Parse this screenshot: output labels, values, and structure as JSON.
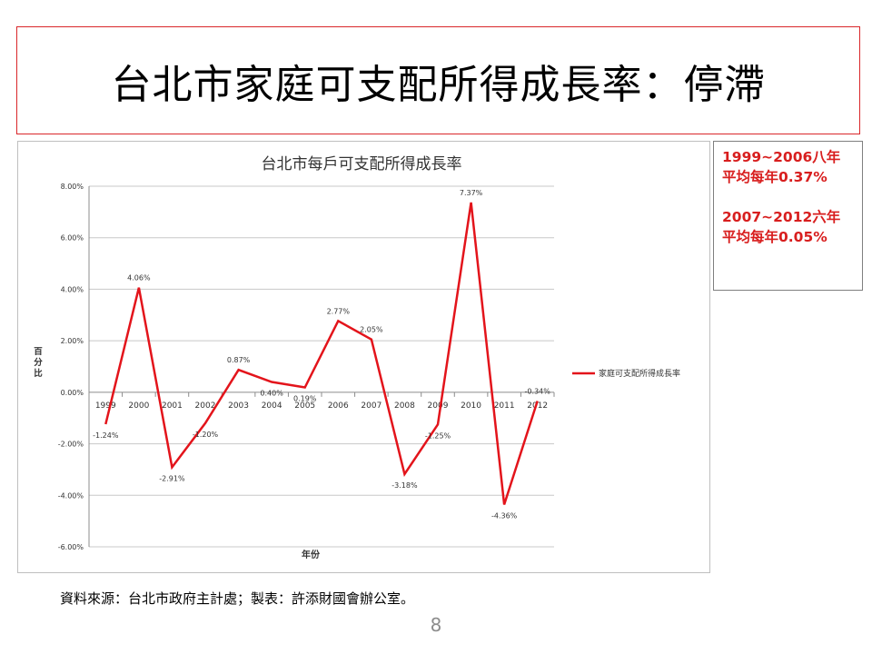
{
  "slide": {
    "title": "台北市家庭可支配所得成長率：停滯",
    "source_note": "資料來源：台北市政府主計處；製表：許添財國會辦公室。",
    "page_number": "8"
  },
  "note_box": {
    "line1": "1999~2006八年",
    "line2": "平均每年0.37%",
    "line3": "2007~2012六年",
    "line4": "平均每年0.05%"
  },
  "chart_data": {
    "type": "line",
    "title": "台北市每戶可支配所得成長率",
    "xlabel": "年份",
    "ylabel": "百分比",
    "categories": [
      "1999",
      "2000",
      "2001",
      "2002",
      "2003",
      "2004",
      "2005",
      "2006",
      "2007",
      "2008",
      "2009",
      "2010",
      "2011",
      "2012"
    ],
    "series": [
      {
        "name": "家庭可支配所得成長率",
        "values": [
          -1.24,
          4.06,
          -2.91,
          -1.2,
          0.87,
          0.4,
          0.19,
          2.77,
          2.05,
          -3.18,
          -1.25,
          7.37,
          -4.36,
          -0.34
        ],
        "labels": [
          "-1.24%",
          "4.06%",
          "-2.91%",
          "-1.20%",
          "0.87%",
          "0.40%",
          "0.19%",
          "2.77%",
          "2.05%",
          "-3.18%",
          "-1.25%",
          "7.37%",
          "-4.36%",
          "-0.34%"
        ],
        "color": "#e3141b"
      }
    ],
    "yticks": [
      "8.00%",
      "6.00%",
      "4.00%",
      "2.00%",
      "0.00%",
      "-2.00%",
      "-4.00%",
      "-6.00%"
    ],
    "ylim": [
      -6,
      8
    ],
    "grid": true,
    "legend_position": "right"
  },
  "colors": {
    "title_border": "#d9262a",
    "note_text": "#d81e1e",
    "line": "#e3141b",
    "grid": "#c8c8c8"
  }
}
